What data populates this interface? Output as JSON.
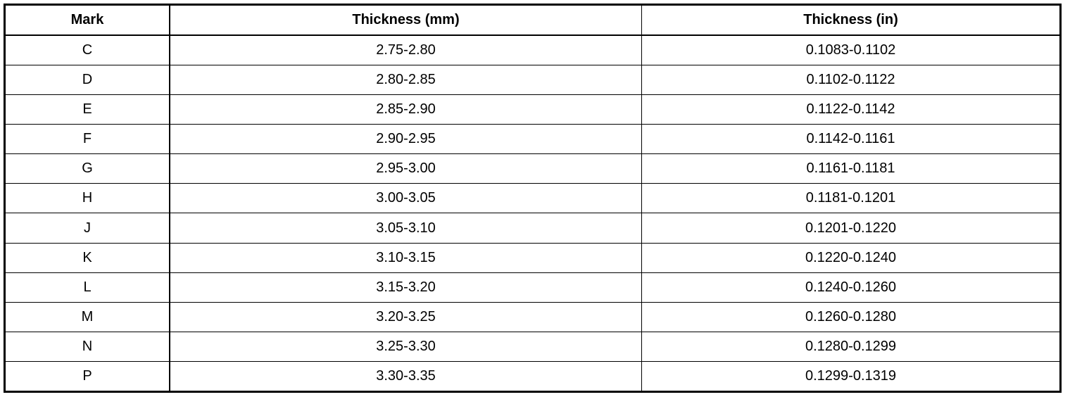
{
  "table": {
    "headers": [
      "Mark",
      "Thickness (mm)",
      "Thickness (in)"
    ],
    "rows": [
      [
        "C",
        "2.75-2.80",
        "0.1083-0.1102"
      ],
      [
        "D",
        "2.80-2.85",
        "0.1102-0.1122"
      ],
      [
        "E",
        "2.85-2.90",
        "0.1122-0.1142"
      ],
      [
        "F",
        "2.90-2.95",
        "0.1142-0.1161"
      ],
      [
        "G",
        "2.95-3.00",
        "0.1161-0.1181"
      ],
      [
        "H",
        "3.00-3.05",
        "0.1181-0.1201"
      ],
      [
        "J",
        "3.05-3.10",
        "0.1201-0.1220"
      ],
      [
        "K",
        "3.10-3.15",
        "0.1220-0.1240"
      ],
      [
        "L",
        "3.15-3.20",
        "0.1240-0.1260"
      ],
      [
        "M",
        "3.20-3.25",
        "0.1260-0.1280"
      ],
      [
        "N",
        "3.25-3.30",
        "0.1280-0.1299"
      ],
      [
        "P",
        "3.30-3.35",
        "0.1299-0.1319"
      ]
    ]
  }
}
